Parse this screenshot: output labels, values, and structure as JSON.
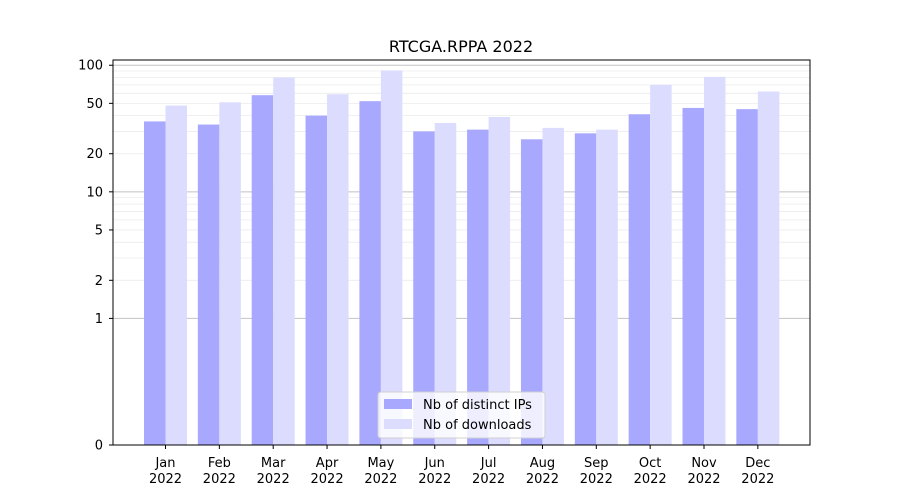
{
  "chart_data": {
    "type": "bar",
    "title": "RTCGA.RPPA 2022",
    "xlabel": "",
    "ylabel": "",
    "yscale": "symlog",
    "ylim": [
      0,
      110
    ],
    "yticks": [
      0,
      1,
      2,
      5,
      10,
      20,
      50,
      100
    ],
    "categories": [
      "Jan\n2022",
      "Feb\n2022",
      "Mar\n2022",
      "Apr\n2022",
      "May\n2022",
      "Jun\n2022",
      "Jul\n2022",
      "Aug\n2022",
      "Sep\n2022",
      "Oct\n2022",
      "Nov\n2022",
      "Dec\n2022"
    ],
    "series": [
      {
        "name": "Nb of distinct IPs",
        "color": "#a8a8ff",
        "values": [
          36,
          34,
          58,
          40,
          52,
          30,
          31,
          26,
          29,
          41,
          46,
          45
        ]
      },
      {
        "name": "Nb of downloads",
        "color": "#dcdcff",
        "values": [
          48,
          51,
          80,
          59,
          91,
          35,
          39,
          32,
          31,
          70,
          81,
          62
        ]
      }
    ],
    "legend_position": "bottom-center",
    "grid": true
  }
}
